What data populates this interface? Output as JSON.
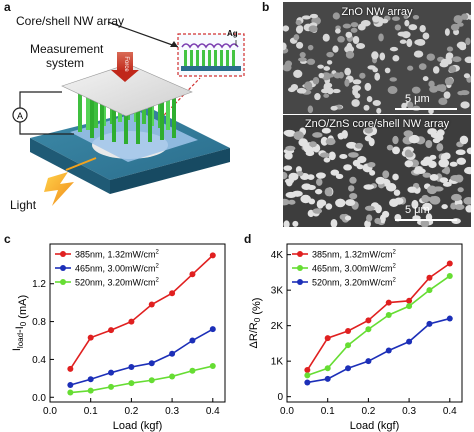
{
  "panels": {
    "a": {
      "letter": "a",
      "label_array": "Core/shell NW array",
      "label_system_1": "Measurement",
      "label_system_2": "system",
      "label_light": "Light",
      "label_ammeter": "A",
      "label_ag": "Ag",
      "label_force": "Force"
    },
    "b": {
      "letter": "b",
      "top_label": "ZnO NW array",
      "bottom_label": "ZnO/ZnS core/shell NW array",
      "scale_top": "5 μm",
      "scale_bottom": "5 μm"
    }
  },
  "colors": {
    "red": "#e02020",
    "blue": "#1c2fb8",
    "green": "#66dd33"
  },
  "chart_data": [
    {
      "panel": "c",
      "type": "line",
      "xlabel": "Load (kgf)",
      "ylabel": "I_load - I_0 (mA)",
      "ylabel_main": "I",
      "ylabel_sub1": "load",
      "ylabel_mid": "-I",
      "ylabel_sub2": "0",
      "ylabel_unit": " (mA)",
      "xlim": [
        0.0,
        0.43
      ],
      "ylim": [
        -0.05,
        1.62
      ],
      "xticks": [
        "0.0",
        "0.1",
        "0.2",
        "0.3",
        "0.4"
      ],
      "yticks": [
        "0.0",
        "0.4",
        "0.8",
        "1.2"
      ],
      "x": [
        0.05,
        0.1,
        0.15,
        0.2,
        0.25,
        0.3,
        0.35,
        0.4
      ],
      "series": [
        {
          "name": "385nm, 1.32mW/cm²",
          "name_main": "385nm, 1.32mW/cm",
          "name_sup": "2",
          "color": "#e02020",
          "values": [
            0.3,
            0.63,
            0.71,
            0.8,
            0.98,
            1.1,
            1.3,
            1.5
          ]
        },
        {
          "name": "465nm, 3.00mW/cm²",
          "name_main": "465nm, 3.00mW/cm",
          "name_sup": "2",
          "color": "#1c2fb8",
          "values": [
            0.13,
            0.19,
            0.26,
            0.32,
            0.36,
            0.46,
            0.6,
            0.72
          ]
        },
        {
          "name": "520nm, 3.20mW/cm²",
          "name_main": "520nm, 3.20mW/cm",
          "name_sup": "2",
          "color": "#66dd33",
          "values": [
            0.05,
            0.07,
            0.11,
            0.15,
            0.18,
            0.22,
            0.28,
            0.33
          ]
        }
      ],
      "legend": "top-left"
    },
    {
      "panel": "d",
      "type": "line",
      "xlabel": "Load (kgf)",
      "ylabel": "ΔR/R_0 (%)",
      "ylabel_main": "ΔR/R",
      "ylabel_sub1": "0",
      "ylabel_unit": " (%)",
      "xlim": [
        0.0,
        0.43
      ],
      "ylim": [
        -150,
        4300
      ],
      "xticks": [
        "0.0",
        "0.1",
        "0.2",
        "0.3",
        "0.4"
      ],
      "yticks": [
        "0",
        "1K",
        "2K",
        "3K",
        "4K"
      ],
      "x": [
        0.05,
        0.1,
        0.15,
        0.2,
        0.25,
        0.3,
        0.35,
        0.4
      ],
      "series": [
        {
          "name": "385nm, 1.32mW/cm²",
          "name_main": "385nm, 1.32mW/cm",
          "name_sup": "2",
          "color": "#e02020",
          "values": [
            750,
            1650,
            1850,
            2150,
            2650,
            2700,
            3350,
            3750
          ]
        },
        {
          "name": "465nm, 3.00mW/cm²",
          "name_main": "465nm, 3.00mW/cm",
          "name_sup": "2",
          "color": "#66dd33",
          "values": [
            600,
            800,
            1450,
            1900,
            2300,
            2550,
            3000,
            3400
          ]
        },
        {
          "name": "520nm, 3.20mW/cm²",
          "name_main": "520nm, 3.20mW/cm",
          "name_sup": "2",
          "color": "#1c2fb8",
          "values": [
            400,
            500,
            800,
            1000,
            1300,
            1550,
            2050,
            2200
          ]
        }
      ],
      "legend": "top-left"
    }
  ]
}
